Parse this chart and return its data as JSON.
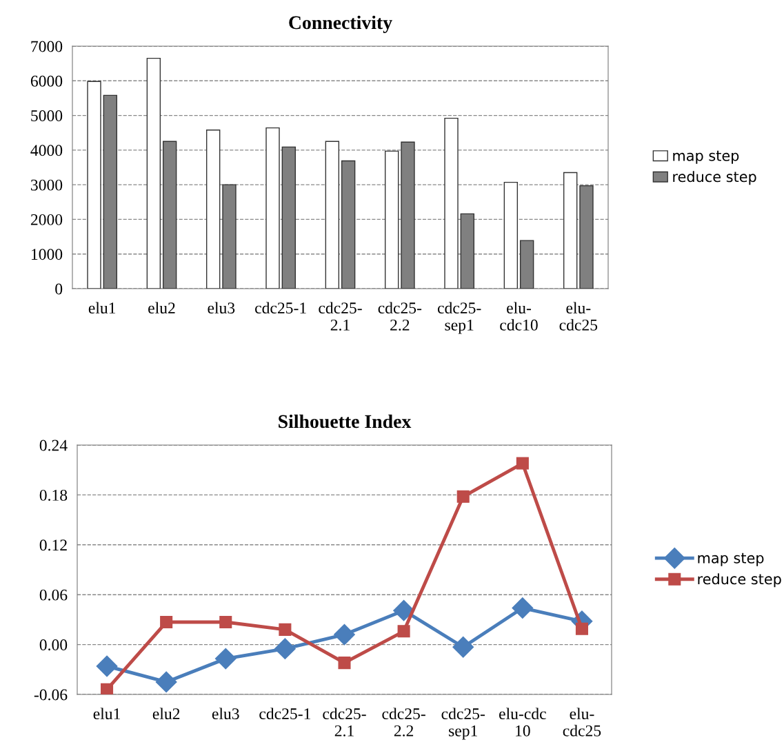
{
  "chart_data": [
    {
      "type": "bar",
      "title": "Connectivity",
      "categories": [
        "elu1",
        "elu2",
        "elu3",
        "cdc25-1",
        "cdc25-\n2.1",
        "cdc25-\n2.2",
        "cdc25-\nsep1",
        "elu-\ncdc10",
        "elu-\ncdc25"
      ],
      "series": [
        {
          "name": "map step",
          "color": "#ffffff",
          "values": [
            5980,
            6650,
            4580,
            4640,
            4250,
            3970,
            4920,
            3070,
            3350
          ]
        },
        {
          "name": "reduce step",
          "color": "#808080",
          "values": [
            5580,
            4250,
            3000,
            4090,
            3690,
            4230,
            2160,
            1390,
            2970
          ]
        }
      ],
      "ylim": [
        0,
        7000
      ],
      "yticks": [
        0,
        1000,
        2000,
        3000,
        4000,
        5000,
        6000,
        7000
      ],
      "grid": "y",
      "legend": "right"
    },
    {
      "type": "line",
      "title": "Silhouette Index",
      "categories": [
        "elu1",
        "elu2",
        "elu3",
        "cdc25-1",
        "cdc25-\n2.1",
        "cdc25-\n2.2",
        "cdc25-\nsep1",
        "elu-cdc\n10",
        "elu-\ncdc25"
      ],
      "series": [
        {
          "name": "map step",
          "color": "#4a7ebb",
          "marker": "diamond",
          "values": [
            -0.026,
            -0.045,
            -0.017,
            -0.005,
            0.012,
            0.041,
            -0.003,
            0.044,
            0.028
          ]
        },
        {
          "name": "reduce step",
          "color": "#be4b48",
          "marker": "square",
          "values": [
            -0.054,
            0.027,
            0.027,
            0.018,
            -0.022,
            0.016,
            0.178,
            0.218,
            0.019
          ]
        }
      ],
      "ylim": [
        -0.06,
        0.24
      ],
      "yticks": [
        -0.06,
        {
          "value": 0,
          "label": "0.00"
        },
        0.06,
        0.12,
        0.18,
        0.24
      ],
      "grid": "y",
      "legend": "right",
      "line_style": "solid"
    }
  ]
}
